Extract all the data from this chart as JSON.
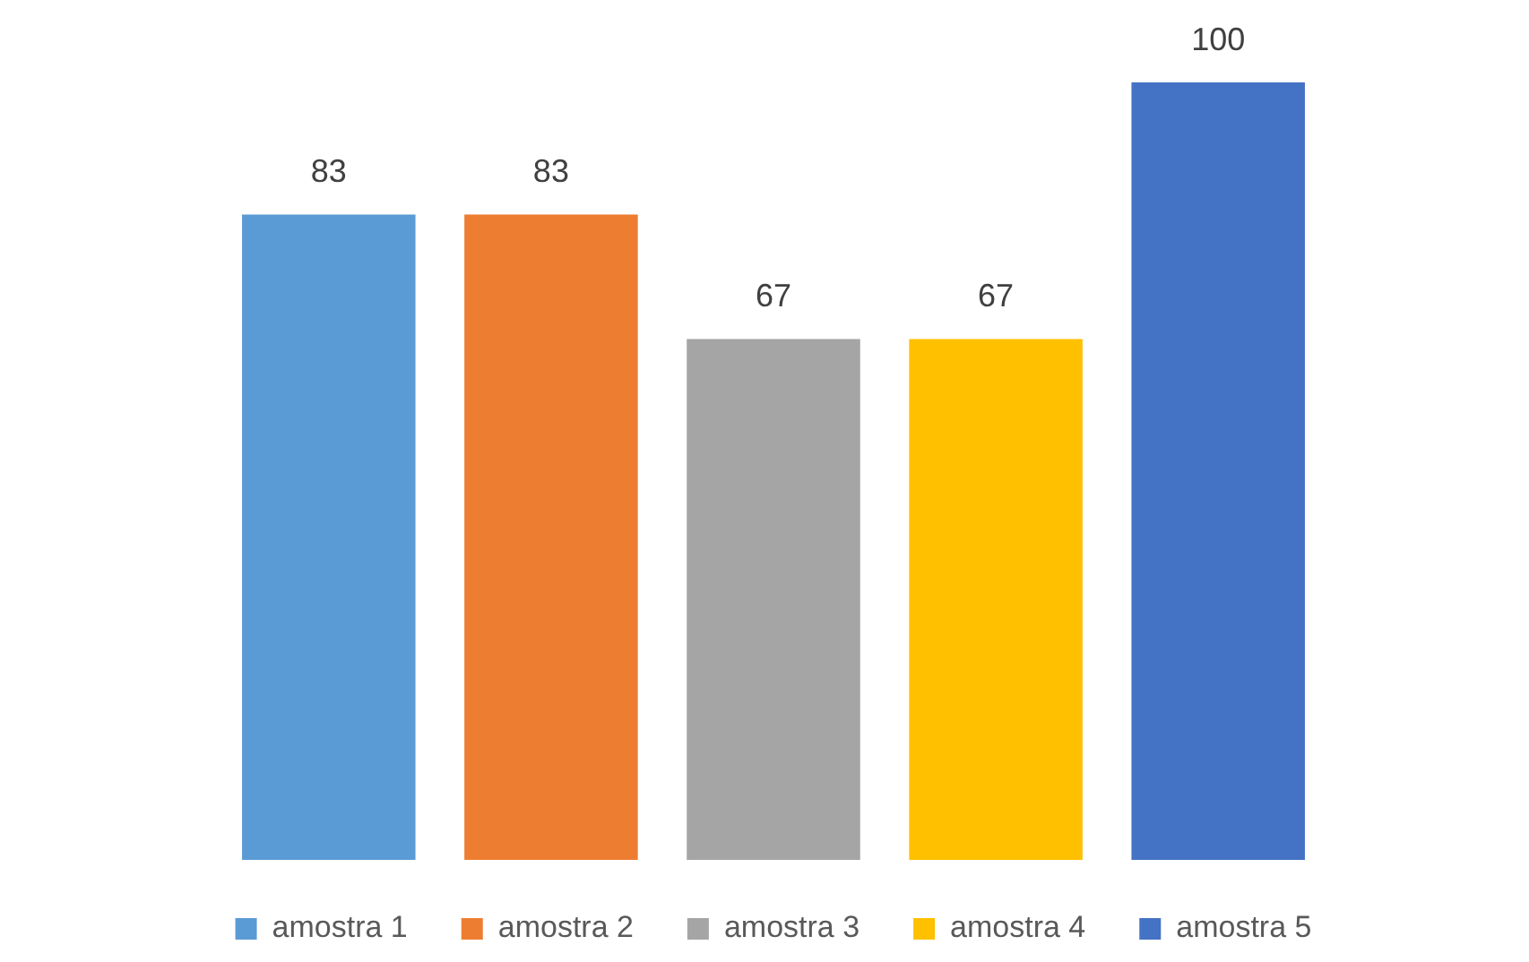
{
  "chart_data": {
    "type": "bar",
    "categories": [
      null
    ],
    "series": [
      {
        "name": "amostra 1",
        "color": "#5b9bd5",
        "values": [
          83
        ]
      },
      {
        "name": "amostra 2",
        "color": "#ed7d31",
        "values": [
          83
        ]
      },
      {
        "name": "amostra 3",
        "color": "#a5a5a5",
        "values": [
          67
        ]
      },
      {
        "name": "amostra 4",
        "color": "#ffc000",
        "values": [
          67
        ]
      },
      {
        "name": "amostra 5",
        "color": "#4472c4",
        "values": [
          100
        ]
      }
    ],
    "data_labels": true,
    "legend": "bottom"
  }
}
